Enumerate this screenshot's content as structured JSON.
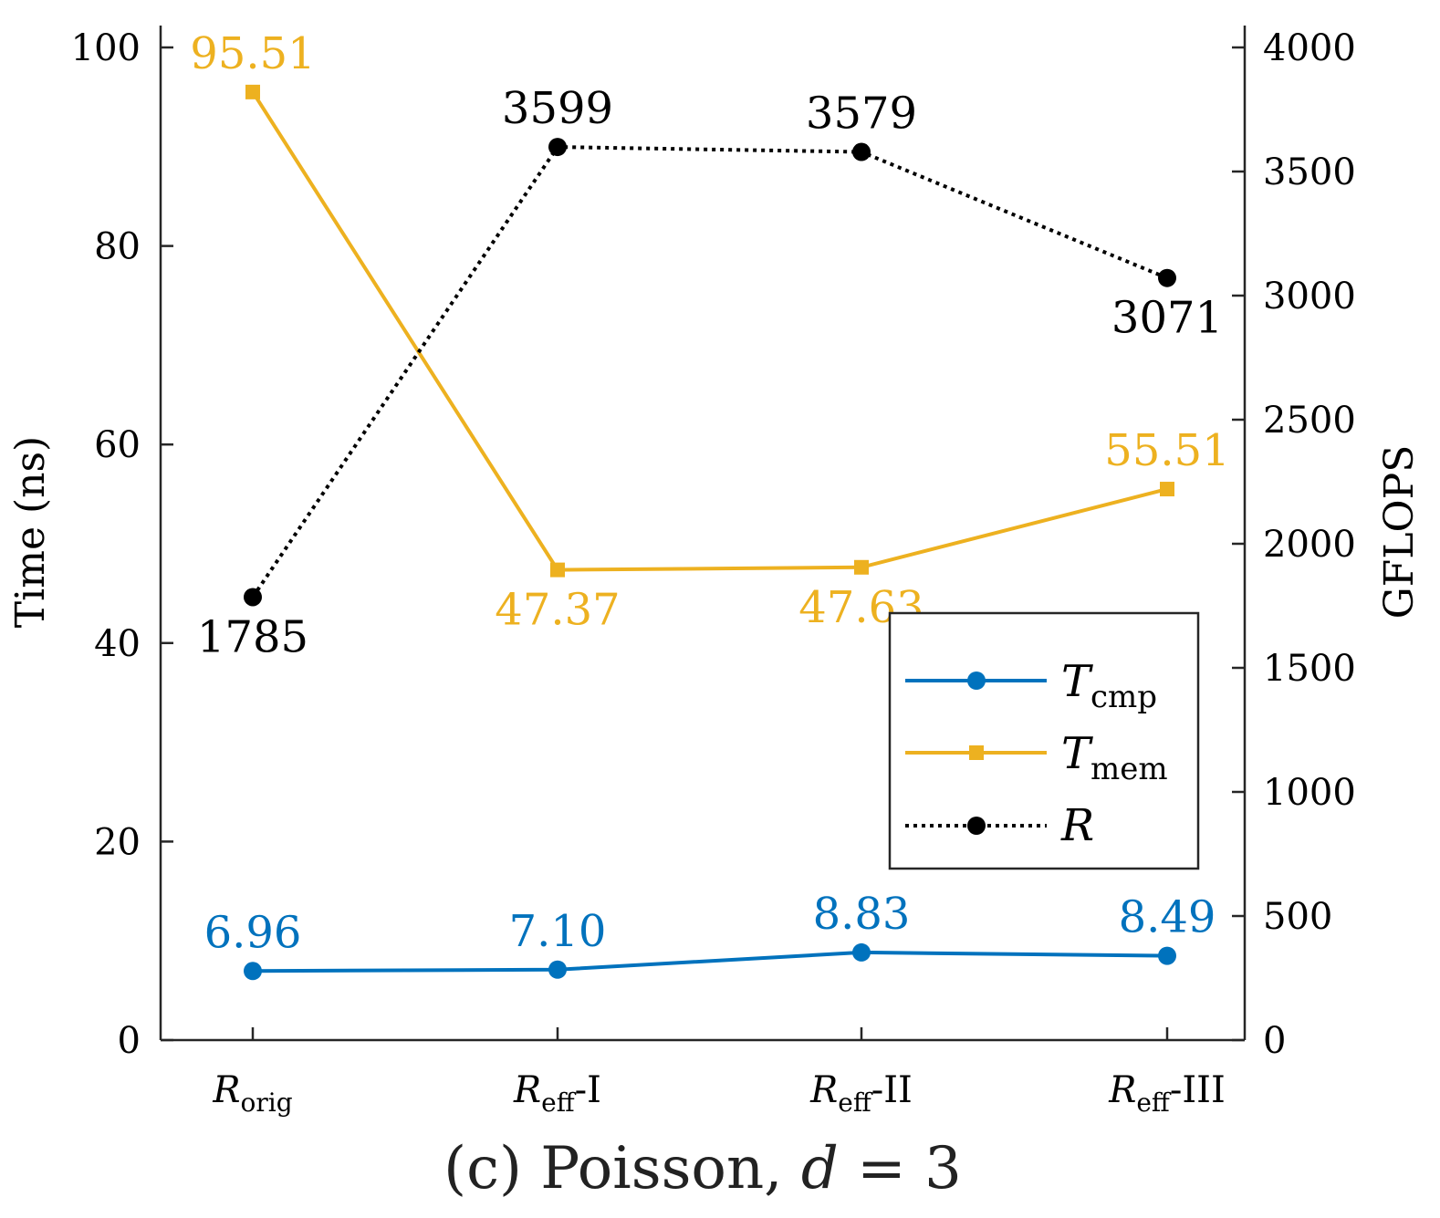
{
  "chart_data": {
    "type": "line",
    "title": "(c) Poisson, d = 3",
    "title_parts": {
      "prefix": "(c) Poisson, ",
      "var": "d",
      "suffix": " = 3"
    },
    "categories": [
      {
        "main": "R",
        "sub": "orig",
        "suffix": ""
      },
      {
        "main": "R",
        "sub": "eff",
        "suffix": "-I"
      },
      {
        "main": "R",
        "sub": "eff",
        "suffix": "-II"
      },
      {
        "main": "R",
        "sub": "eff",
        "suffix": "-III"
      }
    ],
    "ylabel_left": "Time (ns)",
    "ylabel_right": "GFLOPS",
    "ylim_left": [
      0,
      100
    ],
    "ylim_right": [
      0,
      4000
    ],
    "yticks_left": [
      0,
      20,
      40,
      60,
      80,
      100
    ],
    "yticks_right": [
      0,
      500,
      1000,
      1500,
      2000,
      2500,
      3000,
      3500,
      4000
    ],
    "legend_position": "lower-right",
    "series": [
      {
        "name": "T_cmp",
        "legend_main": "T",
        "legend_sub": "cmp",
        "axis": "left",
        "values": [
          6.96,
          7.1,
          8.83,
          8.49
        ],
        "labels": [
          "6.96",
          "7.10",
          "8.83",
          "8.49"
        ],
        "label_pos": [
          "above",
          "above",
          "above",
          "above"
        ],
        "color": "#0072BD",
        "marker": "circle",
        "line": "solid"
      },
      {
        "name": "T_mem",
        "legend_main": "T",
        "legend_sub": "mem",
        "axis": "left",
        "values": [
          95.51,
          47.37,
          47.63,
          55.51
        ],
        "labels": [
          "95.51",
          "47.37",
          "47.63",
          "55.51"
        ],
        "label_pos": [
          "above",
          "below",
          "below",
          "above"
        ],
        "color": "#EDB120",
        "marker": "square",
        "line": "solid"
      },
      {
        "name": "R",
        "legend_main": "R",
        "legend_sub": "",
        "axis": "right",
        "values": [
          1785,
          3599,
          3579,
          3071
        ],
        "labels": [
          "1785",
          "3599",
          "3579",
          "3071"
        ],
        "label_pos": [
          "below",
          "above",
          "above",
          "below"
        ],
        "color": "#000000",
        "marker": "circle",
        "line": "dotted"
      }
    ]
  }
}
